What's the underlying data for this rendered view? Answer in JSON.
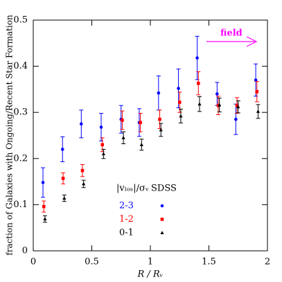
{
  "chart_data": {
    "type": "scatter",
    "y_label": "fraction of Galaxies with Ongoing/Recent Star Formation",
    "x_label": "R / Rᵥ",
    "legend_title": "|vₗₒₛ|/σᵥ",
    "legend_header": "SDSS",
    "annotation": "field",
    "annotation_color": "#ff00ff",
    "xlim": [
      0,
      2
    ],
    "xticks": [
      0,
      0.5,
      1,
      1.5,
      2
    ],
    "ylim": [
      0,
      0.5
    ],
    "yticks": [
      0,
      0.1,
      0.2,
      0.3,
      0.4,
      0.5
    ],
    "series": [
      {
        "name": "2-3",
        "color": "#0000ff",
        "marker": "circle",
        "x": [
          0.083,
          0.25,
          0.41,
          0.58,
          0.75,
          0.905,
          1.07,
          1.24,
          1.4,
          1.57,
          1.73,
          1.9
        ],
        "values": [
          0.148,
          0.22,
          0.275,
          0.268,
          0.285,
          0.278,
          0.342,
          0.352,
          0.418,
          0.34,
          0.285,
          0.37
        ],
        "errors": [
          0.032,
          0.027,
          0.03,
          0.03,
          0.03,
          0.03,
          0.037,
          0.042,
          0.047,
          0.025,
          0.033,
          0.035
        ]
      },
      {
        "name": "1-2",
        "color": "#ff0000",
        "marker": "square",
        "x": [
          0.09,
          0.255,
          0.42,
          0.59,
          0.76,
          0.915,
          1.08,
          1.25,
          1.41,
          1.58,
          1.74,
          1.91
        ],
        "values": [
          0.096,
          0.157,
          0.174,
          0.23,
          0.283,
          0.278,
          0.285,
          0.322,
          0.363,
          0.315,
          0.315,
          0.345
        ],
        "errors": [
          0.012,
          0.012,
          0.013,
          0.015,
          0.02,
          0.02,
          0.02,
          0.022,
          0.025,
          0.02,
          0.017,
          0.022
        ]
      },
      {
        "name": "0-1",
        "color": "#000000",
        "marker": "triangle",
        "x": [
          0.1,
          0.265,
          0.43,
          0.6,
          0.77,
          0.925,
          1.09,
          1.26,
          1.42,
          1.59,
          1.75,
          1.92
        ],
        "values": [
          0.069,
          0.114,
          0.145,
          0.21,
          0.245,
          0.23,
          0.262,
          0.292,
          0.318,
          0.316,
          0.312,
          0.302
        ],
        "errors": [
          0.007,
          0.007,
          0.008,
          0.01,
          0.013,
          0.012,
          0.014,
          0.015,
          0.016,
          0.015,
          0.013,
          0.015
        ]
      }
    ]
  }
}
